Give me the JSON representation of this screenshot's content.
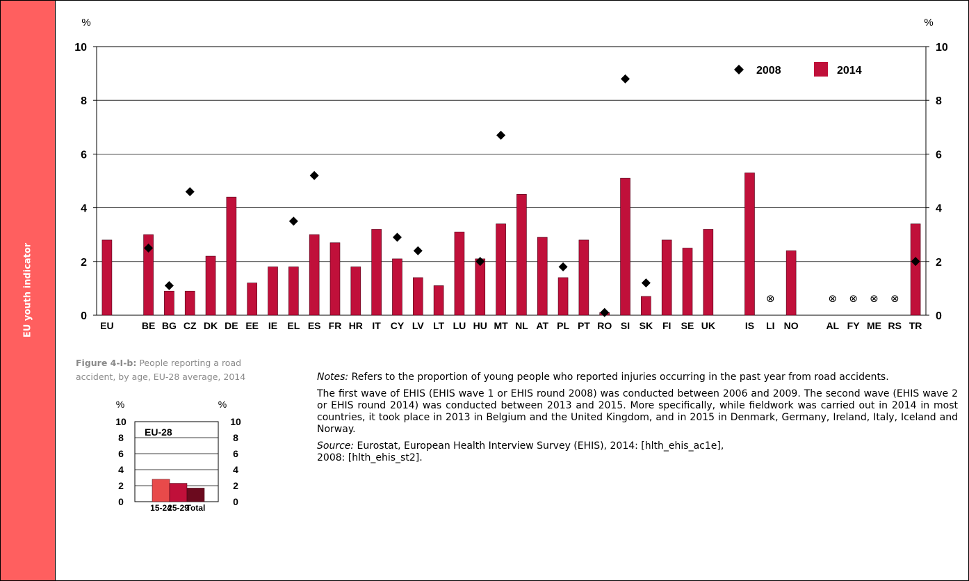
{
  "sidebar": {
    "label": "EU youth indicator",
    "color": "#ff5f5f"
  },
  "chart_data": [
    {
      "type": "bar",
      "ylabel_left": "%",
      "ylabel_right": "%",
      "ylim": [
        0,
        10
      ],
      "yticks": [
        0,
        2,
        4,
        6,
        8,
        10
      ],
      "grid": true,
      "legend_position": "top-right",
      "categories": [
        "EU",
        "",
        "BE",
        "BG",
        "CZ",
        "DK",
        "DE",
        "EE",
        "IE",
        "EL",
        "ES",
        "FR",
        "HR",
        "IT",
        "CY",
        "LV",
        "LT",
        "LU",
        "HU",
        "MT",
        "NL",
        "AT",
        "PL",
        "PT",
        "RO",
        "SI",
        "SK",
        "FI",
        "SE",
        "UK",
        "",
        "IS",
        "LI",
        "NO",
        "",
        "AL",
        "FY",
        "ME",
        "RS",
        "TR"
      ],
      "series": [
        {
          "name": "2008",
          "kind": "marker",
          "color": "#000000",
          "values": [
            null,
            null,
            2.5,
            1.1,
            4.6,
            null,
            null,
            null,
            null,
            3.5,
            5.2,
            null,
            null,
            null,
            2.9,
            2.4,
            null,
            null,
            2.0,
            6.7,
            null,
            null,
            1.8,
            null,
            0.1,
            8.8,
            1.2,
            null,
            null,
            null,
            null,
            null,
            null,
            null,
            null,
            null,
            null,
            null,
            null,
            2.0
          ]
        },
        {
          "name": "2014",
          "kind": "bar",
          "color": "#c0103a",
          "values": [
            2.8,
            null,
            3.0,
            0.9,
            0.9,
            2.2,
            4.4,
            1.2,
            1.8,
            1.8,
            3.0,
            2.7,
            1.8,
            3.2,
            2.1,
            1.4,
            1.1,
            3.1,
            2.1,
            3.4,
            4.5,
            2.9,
            1.4,
            2.8,
            0.1,
            5.1,
            0.7,
            2.8,
            2.5,
            3.2,
            null,
            5.3,
            null,
            2.4,
            null,
            null,
            null,
            null,
            null,
            3.4
          ]
        }
      ],
      "not_available": [
        "LI",
        "AL",
        "FY",
        "ME",
        "RS"
      ],
      "not_available_symbol": "⊗"
    },
    {
      "type": "bar",
      "title": "Figure 4-I-b:",
      "subtitle": "People reporting a road accident, by age, EU-28 average, 2014",
      "panel_label": "EU-28",
      "ylabel_left": "%",
      "ylabel_right": "%",
      "ylim": [
        0,
        10
      ],
      "yticks": [
        0,
        2,
        4,
        6,
        8,
        10
      ],
      "grid": true,
      "categories": [
        "15-24",
        "25-29",
        "Total"
      ],
      "values": [
        2.8,
        2.3,
        1.7
      ],
      "colors": [
        "#e84a4a",
        "#c0103a",
        "#6b0a1e"
      ]
    }
  ],
  "notes": {
    "notes_label": "Notes:",
    "notes_text": " Refers to the proportion of young people who reported injuries occurring in the past year from road accidents.",
    "para2": "The first wave of EHIS (EHIS wave 1 or EHIS round 2008) was conducted between 2006 and 2009. The second wave (EHIS wave 2 or EHIS round 2014) was conducted between 2013 and 2015. More specifically, while fieldwork was carried out in 2014 in most countries, it took place in 2013 in Belgium and the United Kingdom, and in 2015 in Denmark, Germany, Ireland, Italy, Iceland and Norway.",
    "source_label": "Source:",
    "source_line1": " Eurostat, European Health Interview Survey (EHIS), 2014: [hlth_ehis_ac1e],",
    "source_line2": "2008: [hlth_ehis_st2]."
  }
}
